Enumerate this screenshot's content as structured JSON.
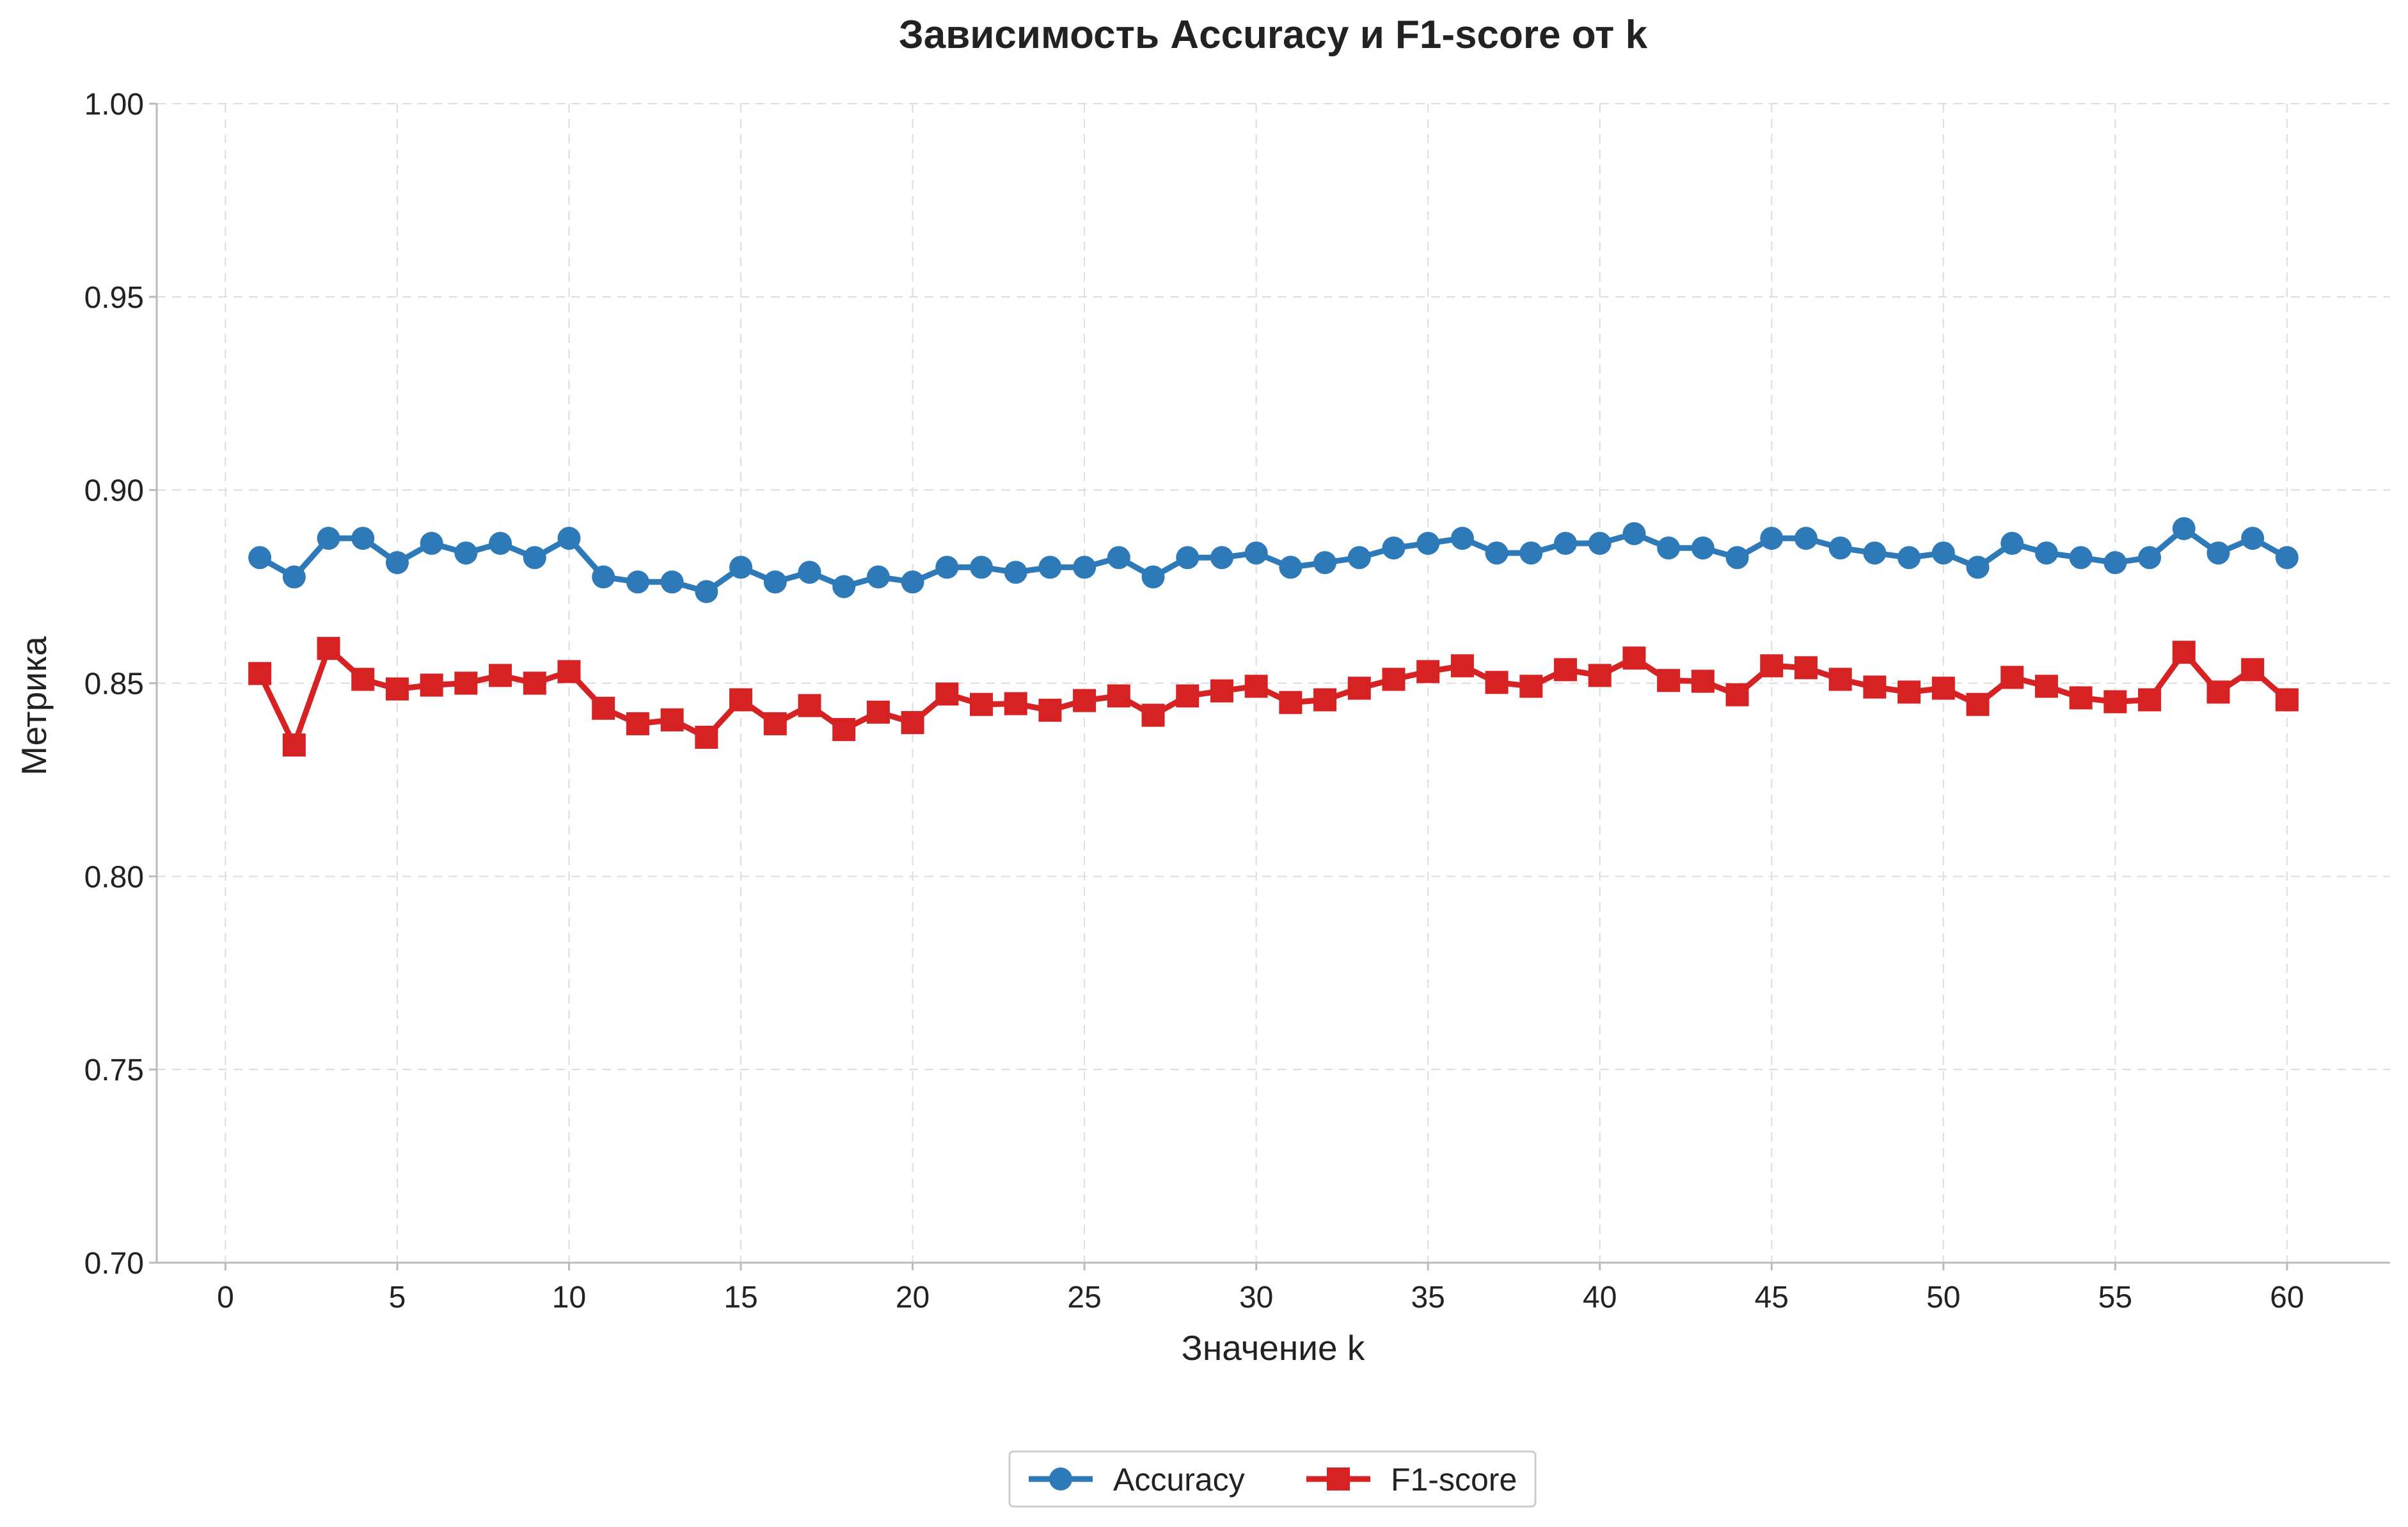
{
  "chart_data": {
    "type": "line",
    "title": "Зависимость Accuracy и F1-score от k",
    "xlabel": "Значение k",
    "ylabel": "Метрика",
    "xlim": [
      -2,
      63
    ],
    "ylim": [
      0.7,
      1.0
    ],
    "x_ticks": [
      0,
      5,
      10,
      15,
      20,
      25,
      30,
      35,
      40,
      45,
      50,
      55,
      60
    ],
    "x_tick_labels": [
      "0",
      "5",
      "10",
      "15",
      "20",
      "25",
      "30",
      "35",
      "40",
      "45",
      "50",
      "55",
      "60"
    ],
    "y_ticks": [
      0.7,
      0.75,
      0.8,
      0.85,
      0.9,
      0.95,
      1.0
    ],
    "y_tick_labels": [
      "0.70",
      "0.75",
      "0.80",
      "0.85",
      "0.90",
      "0.95",
      "1.00"
    ],
    "grid": true,
    "legend_position": "bottom-center",
    "x": [
      1,
      2,
      3,
      4,
      5,
      6,
      7,
      8,
      9,
      10,
      11,
      12,
      13,
      14,
      15,
      16,
      17,
      18,
      19,
      20,
      21,
      22,
      23,
      24,
      25,
      26,
      27,
      28,
      29,
      30,
      31,
      32,
      33,
      34,
      35,
      36,
      37,
      38,
      39,
      40,
      41,
      42,
      43,
      44,
      45,
      46,
      47,
      48,
      49,
      50,
      51,
      52,
      53,
      54,
      55,
      56,
      57,
      58,
      59,
      60
    ],
    "series": [
      {
        "name": "Accuracy",
        "color": "#2e7ab8",
        "marker": "circle",
        "values": [
          0.8825,
          0.8775,
          0.8875,
          0.8875,
          0.8812,
          0.8862,
          0.8837,
          0.8862,
          0.8825,
          0.8875,
          0.8775,
          0.8762,
          0.8762,
          0.8737,
          0.88,
          0.8762,
          0.8787,
          0.875,
          0.8775,
          0.8762,
          0.88,
          0.88,
          0.8787,
          0.88,
          0.88,
          0.8825,
          0.8775,
          0.8825,
          0.8825,
          0.8837,
          0.88,
          0.8812,
          0.8825,
          0.885,
          0.8862,
          0.8875,
          0.8837,
          0.8837,
          0.8862,
          0.8862,
          0.8887,
          0.885,
          0.885,
          0.8825,
          0.8875,
          0.8875,
          0.885,
          0.8837,
          0.8825,
          0.8837,
          0.88,
          0.8862,
          0.8837,
          0.8825,
          0.8812,
          0.8825,
          0.89,
          0.8837,
          0.8875,
          0.8825
        ]
      },
      {
        "name": "F1-score",
        "color": "#d62222",
        "marker": "square",
        "values": [
          0.8525,
          0.834,
          0.859,
          0.851,
          0.8485,
          0.8495,
          0.85,
          0.852,
          0.85,
          0.853,
          0.8435,
          0.8395,
          0.8405,
          0.836,
          0.8457,
          0.8395,
          0.8442,
          0.838,
          0.8425,
          0.8398,
          0.8472,
          0.8445,
          0.8447,
          0.843,
          0.8455,
          0.8467,
          0.8417,
          0.8467,
          0.848,
          0.8492,
          0.845,
          0.8457,
          0.8487,
          0.851,
          0.853,
          0.8545,
          0.8502,
          0.8492,
          0.8535,
          0.852,
          0.8565,
          0.8507,
          0.8505,
          0.847,
          0.8545,
          0.854,
          0.851,
          0.849,
          0.8477,
          0.8487,
          0.8445,
          0.8515,
          0.8492,
          0.8462,
          0.8452,
          0.8457,
          0.858,
          0.8477,
          0.8535,
          0.8457
        ]
      }
    ]
  }
}
